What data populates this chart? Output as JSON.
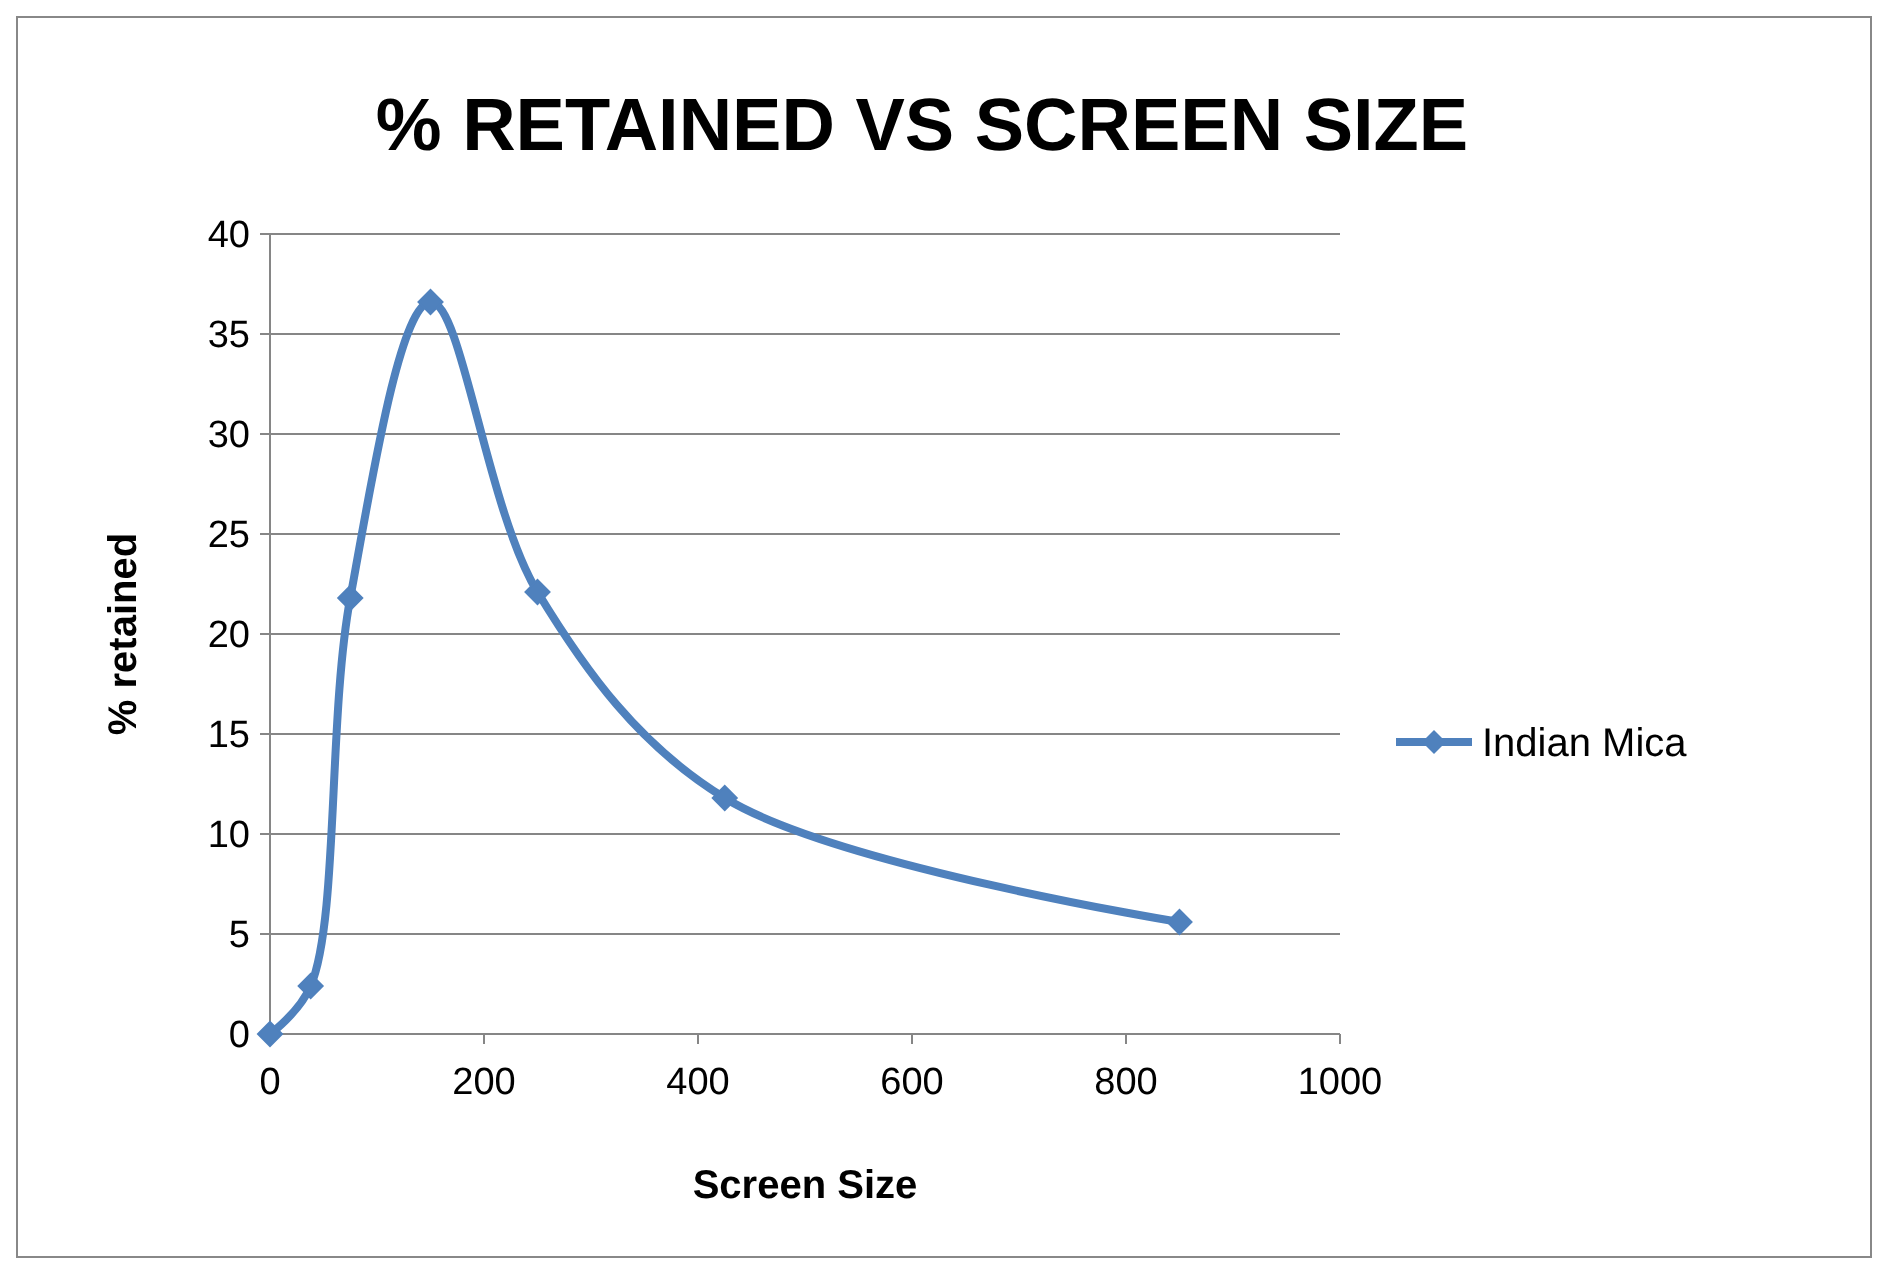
{
  "chart_data": {
    "type": "line",
    "title": "% RETAINED VS SCREEN SIZE",
    "xlabel": "Screen Size",
    "ylabel": "% retained",
    "x": [
      0,
      38,
      75,
      150,
      250,
      425,
      850
    ],
    "series": [
      {
        "name": "Indian Mica",
        "color": "#4f81bd",
        "values": [
          0,
          2.4,
          21.8,
          36.6,
          22.1,
          11.8,
          5.6
        ]
      }
    ],
    "xlim": [
      0,
      1000
    ],
    "xticks": [
      0,
      200,
      400,
      600,
      800,
      1000
    ],
    "ylim": [
      0,
      40
    ],
    "yticks": [
      0,
      5,
      10,
      15,
      20,
      25,
      30,
      35,
      40
    ],
    "grid": "y",
    "legend": "right",
    "marker": "diamond",
    "line_style": "solid"
  }
}
